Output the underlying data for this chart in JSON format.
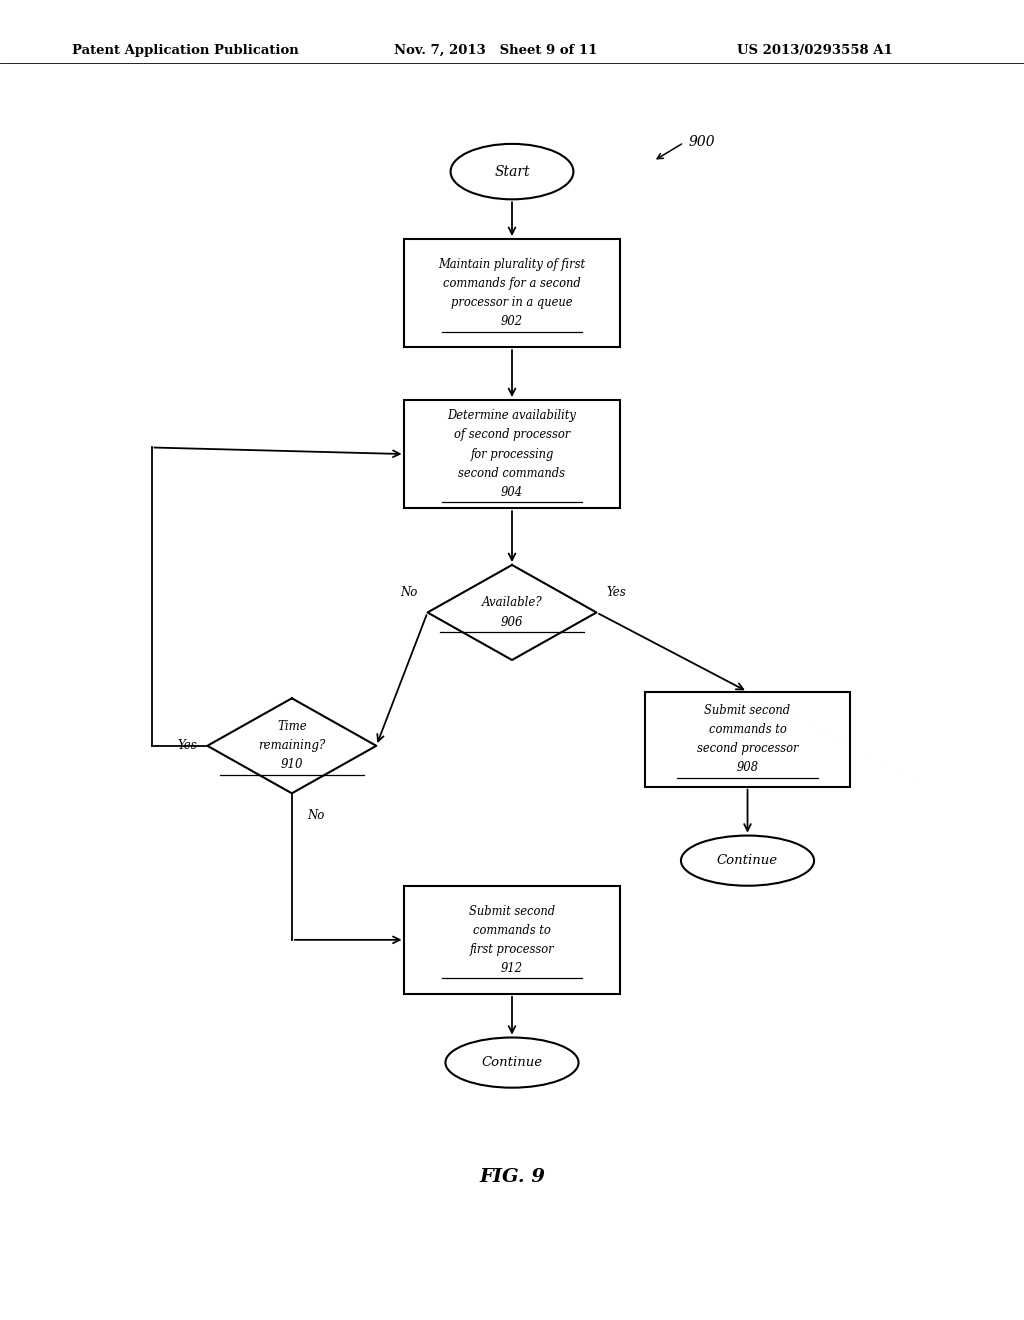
{
  "bg_color": "#ffffff",
  "header_left": "Patent Application Publication",
  "header_mid": "Nov. 7, 2013   Sheet 9 of 11",
  "header_right": "US 2013/0293558 A1",
  "fig_label": "FIG. 9",
  "diagram_label": "900"
}
